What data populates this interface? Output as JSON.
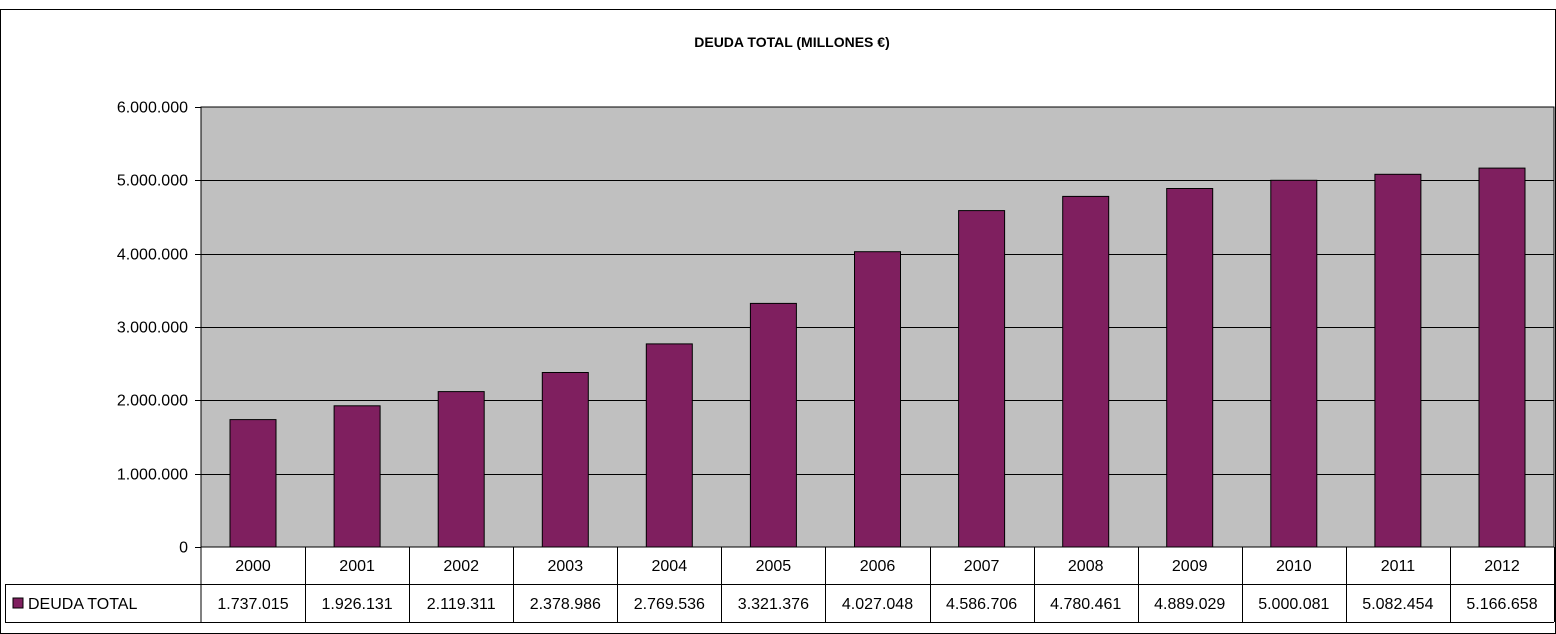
{
  "chart_data": {
    "type": "bar",
    "title": "DEUDA TOTAL (MILLONES €)",
    "xlabel": "",
    "ylabel": "",
    "categories": [
      "2000",
      "2001",
      "2002",
      "2003",
      "2004",
      "2005",
      "2006",
      "2007",
      "2008",
      "2009",
      "2010",
      "2011",
      "2012"
    ],
    "series": [
      {
        "name": "DEUDA TOTAL",
        "values": [
          1737015,
          1926131,
          2119311,
          2378986,
          2769536,
          3321376,
          4027048,
          4586706,
          4780461,
          4889029,
          5000081,
          5082454,
          5166658
        ],
        "labels": [
          "1.737.015",
          "1.926.131",
          "2.119.311",
          "2.378.986",
          "2.769.536",
          "3.321.376",
          "4.027.048",
          "4.586.706",
          "4.780.461",
          "4.889.029",
          "5.000.081",
          "5.082.454",
          "5.166.658"
        ],
        "color": "#7f1f5f"
      }
    ],
    "ylim": [
      0,
      6000000
    ],
    "yticks": [
      {
        "value": 0,
        "label": "0"
      },
      {
        "value": 1000000,
        "label": "1.000.000"
      },
      {
        "value": 2000000,
        "label": "2.000.000"
      },
      {
        "value": 3000000,
        "label": "3.000.000"
      },
      {
        "value": 4000000,
        "label": "4.000.000"
      },
      {
        "value": 5000000,
        "label": "5.000.000"
      },
      {
        "value": 6000000,
        "label": "6.000.000"
      }
    ],
    "grid": true,
    "legend": "data-table",
    "plot_background": "#c0c0c0"
  }
}
